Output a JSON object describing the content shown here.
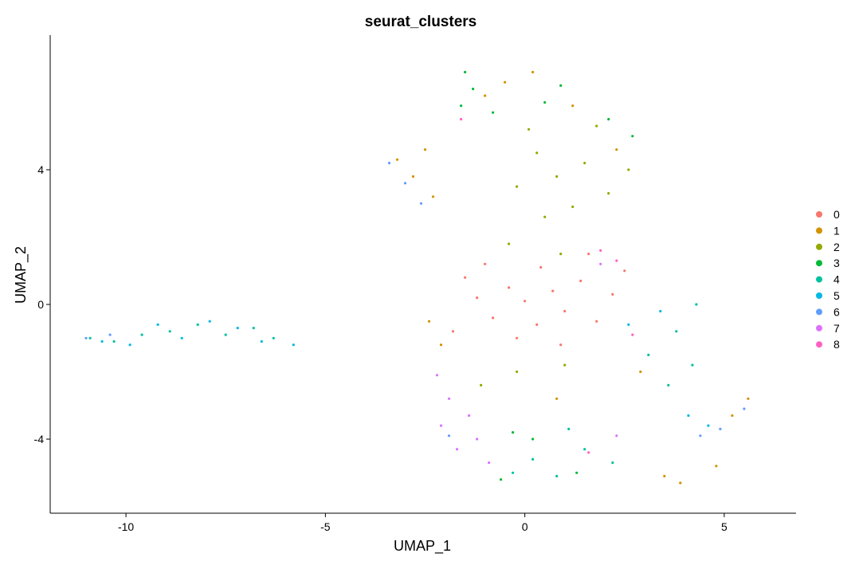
{
  "chart_data": {
    "type": "scatter",
    "title": "seurat_clusters",
    "xlabel": "UMAP_1",
    "ylabel": "UMAP_2",
    "xlim": [
      -11.9,
      6.8
    ],
    "ylim": [
      -6.2,
      8.0
    ],
    "x_ticks": [
      {
        "value": -10,
        "label": "-10"
      },
      {
        "value": -5,
        "label": "-5"
      },
      {
        "value": 0,
        "label": "0"
      },
      {
        "value": 5,
        "label": "5"
      }
    ],
    "y_ticks": [
      {
        "value": 4,
        "label": "4"
      },
      {
        "value": 0,
        "label": "0"
      },
      {
        "value": -4,
        "label": "-4"
      }
    ],
    "grid": false,
    "legend_position": "right",
    "series": [
      {
        "name": "0",
        "color": "#F8766D",
        "values": [
          [
            -1.5,
            0.8
          ],
          [
            -1.2,
            0.2
          ],
          [
            -0.8,
            -0.4
          ],
          [
            -0.4,
            0.5
          ],
          [
            0.0,
            0.1
          ],
          [
            0.3,
            -0.6
          ],
          [
            0.7,
            0.4
          ],
          [
            1.0,
            -0.2
          ],
          [
            1.4,
            0.7
          ],
          [
            1.8,
            -0.5
          ],
          [
            2.2,
            0.3
          ],
          [
            -1.8,
            -0.8
          ],
          [
            -0.2,
            -1.0
          ],
          [
            0.9,
            -1.2
          ],
          [
            1.6,
            1.5
          ],
          [
            -1.0,
            1.2
          ],
          [
            0.4,
            1.1
          ],
          [
            2.5,
            1.0
          ]
        ]
      },
      {
        "name": "1",
        "color": "#D39200",
        "values": [
          [
            -3.2,
            4.3
          ],
          [
            -2.8,
            3.8
          ],
          [
            -2.5,
            4.6
          ],
          [
            -2.3,
            3.2
          ],
          [
            -0.5,
            6.6
          ],
          [
            0.2,
            6.9
          ],
          [
            -1.0,
            6.2
          ],
          [
            1.2,
            5.9
          ],
          [
            2.3,
            4.6
          ],
          [
            3.5,
            -5.1
          ],
          [
            3.9,
            -5.3
          ],
          [
            4.8,
            -4.8
          ],
          [
            5.2,
            -3.3
          ],
          [
            5.6,
            -2.8
          ],
          [
            -2.1,
            -1.2
          ],
          [
            -2.4,
            -0.5
          ],
          [
            0.8,
            -2.8
          ],
          [
            2.9,
            -2.0
          ]
        ]
      },
      {
        "name": "2",
        "color": "#93AA00",
        "values": [
          [
            0.3,
            4.5
          ],
          [
            0.8,
            3.8
          ],
          [
            1.5,
            4.2
          ],
          [
            2.1,
            3.3
          ],
          [
            -0.2,
            3.5
          ],
          [
            0.5,
            2.6
          ],
          [
            1.2,
            2.9
          ],
          [
            -0.4,
            1.8
          ],
          [
            0.9,
            1.5
          ],
          [
            1.8,
            5.3
          ],
          [
            2.6,
            4.0
          ],
          [
            0.1,
            5.2
          ],
          [
            -1.1,
            -2.4
          ],
          [
            -0.2,
            -2.0
          ],
          [
            1.0,
            -1.8
          ]
        ]
      },
      {
        "name": "3",
        "color": "#00BA38",
        "values": [
          [
            -1.6,
            5.9
          ],
          [
            -1.3,
            6.4
          ],
          [
            -0.8,
            5.7
          ],
          [
            0.5,
            6.0
          ],
          [
            2.1,
            5.5
          ],
          [
            2.7,
            5.0
          ],
          [
            -1.5,
            6.9
          ],
          [
            0.9,
            6.5
          ],
          [
            -0.3,
            -3.8
          ],
          [
            0.2,
            -4.0
          ],
          [
            -0.6,
            -5.2
          ],
          [
            1.3,
            -5.0
          ]
        ]
      },
      {
        "name": "4",
        "color": "#00C19F",
        "values": [
          [
            -10.9,
            -1.0
          ],
          [
            -10.3,
            -1.1
          ],
          [
            -9.6,
            -0.9
          ],
          [
            -8.9,
            -0.8
          ],
          [
            -8.2,
            -0.6
          ],
          [
            -7.5,
            -0.9
          ],
          [
            -6.8,
            -0.7
          ],
          [
            -6.3,
            -1.0
          ],
          [
            0.2,
            -4.6
          ],
          [
            0.8,
            -5.1
          ],
          [
            1.5,
            -4.3
          ],
          [
            2.2,
            -4.7
          ],
          [
            -0.3,
            -5.0
          ],
          [
            1.1,
            -3.7
          ],
          [
            3.1,
            -1.5
          ],
          [
            3.8,
            -0.8
          ],
          [
            4.2,
            -1.8
          ],
          [
            3.6,
            -2.4
          ],
          [
            4.3,
            0.0
          ]
        ]
      },
      {
        "name": "5",
        "color": "#00B9E3",
        "values": [
          [
            -10.6,
            -1.1
          ],
          [
            -9.9,
            -1.2
          ],
          [
            -9.2,
            -0.6
          ],
          [
            -8.6,
            -1.0
          ],
          [
            -7.9,
            -0.5
          ],
          [
            -7.2,
            -0.7
          ],
          [
            -6.6,
            -1.1
          ],
          [
            -5.8,
            -1.2
          ],
          [
            4.1,
            -3.3
          ],
          [
            4.6,
            -3.6
          ],
          [
            3.4,
            -0.2
          ],
          [
            2.6,
            -0.6
          ]
        ]
      },
      {
        "name": "6",
        "color": "#619CFF",
        "values": [
          [
            -3.4,
            4.2
          ],
          [
            -3.0,
            3.6
          ],
          [
            -2.6,
            3.0
          ],
          [
            -11.0,
            -1.0
          ],
          [
            -10.4,
            -0.9
          ],
          [
            4.4,
            -3.9
          ],
          [
            4.9,
            -3.7
          ],
          [
            5.5,
            -3.1
          ],
          [
            -1.9,
            -3.9
          ]
        ]
      },
      {
        "name": "7",
        "color": "#DB72FB",
        "values": [
          [
            -2.1,
            -3.6
          ],
          [
            -1.7,
            -4.3
          ],
          [
            -1.2,
            -4.0
          ],
          [
            -1.9,
            -2.8
          ],
          [
            -0.9,
            -4.7
          ],
          [
            -2.2,
            -2.1
          ],
          [
            1.9,
            1.2
          ],
          [
            2.3,
            -3.9
          ],
          [
            -1.4,
            -3.3
          ]
        ]
      },
      {
        "name": "8",
        "color": "#FF61C3",
        "values": [
          [
            1.9,
            1.6
          ],
          [
            2.3,
            1.3
          ],
          [
            -1.6,
            5.5
          ],
          [
            2.7,
            -0.9
          ],
          [
            1.6,
            -4.4
          ]
        ]
      }
    ]
  }
}
